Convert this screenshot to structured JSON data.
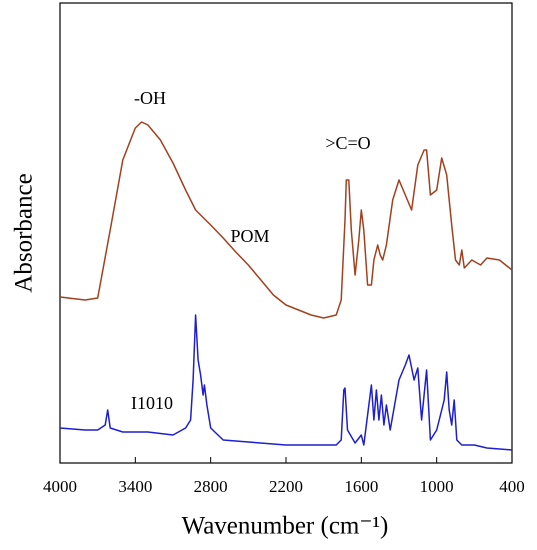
{
  "chart_data": {
    "type": "line",
    "xlabel": "Wavenumber (cm⁻¹)",
    "ylabel": "Absorbance",
    "annotations": [
      "-OH",
      "POM",
      ">C=O",
      "I1010"
    ],
    "xlim": [
      4000,
      400
    ],
    "xticks": [
      4000,
      3400,
      2800,
      2200,
      1600,
      1000,
      400
    ],
    "ylim": [
      0,
      460
    ],
    "series": [
      {
        "name": "POM",
        "color": "#a3401e",
        "x": [
          4000,
          3800,
          3700,
          3600,
          3500,
          3400,
          3350,
          3300,
          3200,
          3100,
          3000,
          2920,
          2880,
          2800,
          2700,
          2600,
          2500,
          2400,
          2300,
          2200,
          2100,
          2000,
          1900,
          1800,
          1760,
          1730,
          1720,
          1700,
          1680,
          1650,
          1620,
          1600,
          1580,
          1550,
          1520,
          1500,
          1470,
          1450,
          1430,
          1400,
          1350,
          1300,
          1250,
          1200,
          1150,
          1100,
          1080,
          1050,
          1000,
          960,
          920,
          880,
          850,
          820,
          800,
          780,
          720,
          650,
          600,
          500,
          400
        ],
        "values": [
          166,
          163,
          165,
          233,
          303,
          335,
          341,
          338,
          323,
          300,
          273,
          253,
          248,
          238,
          225,
          211,
          198,
          183,
          168,
          158,
          153,
          148,
          145,
          148,
          163,
          243,
          283,
          283,
          233,
          188,
          223,
          253,
          233,
          178,
          178,
          203,
          218,
          208,
          203,
          218,
          263,
          283,
          268,
          253,
          298,
          313,
          313,
          268,
          273,
          305,
          288,
          238,
          203,
          198,
          213,
          195,
          203,
          198,
          205,
          203,
          193
        ]
      },
      {
        "name": "I1010",
        "color": "#1e1ed2",
        "x": [
          4000,
          3800,
          3700,
          3640,
          3620,
          3600,
          3500,
          3300,
          3100,
          3000,
          2960,
          2940,
          2920,
          2900,
          2880,
          2860,
          2850,
          2830,
          2800,
          2700,
          2500,
          2200,
          2000,
          1800,
          1760,
          1740,
          1730,
          1710,
          1650,
          1600,
          1580,
          1520,
          1500,
          1480,
          1460,
          1440,
          1420,
          1400,
          1370,
          1300,
          1250,
          1220,
          1180,
          1150,
          1120,
          1080,
          1050,
          1000,
          960,
          940,
          920,
          900,
          880,
          860,
          840,
          800,
          700,
          600,
          400
        ],
        "values": [
          35,
          33,
          33,
          38,
          53,
          35,
          31,
          31,
          28,
          35,
          43,
          83,
          148,
          103,
          88,
          68,
          78,
          58,
          35,
          23,
          21,
          18,
          18,
          18,
          23,
          73,
          75,
          33,
          20,
          28,
          18,
          78,
          43,
          73,
          43,
          68,
          38,
          58,
          33,
          83,
          98,
          108,
          83,
          95,
          43,
          93,
          23,
          33,
          53,
          63,
          91,
          53,
          38,
          63,
          23,
          18,
          18,
          15,
          13
        ]
      }
    ]
  }
}
